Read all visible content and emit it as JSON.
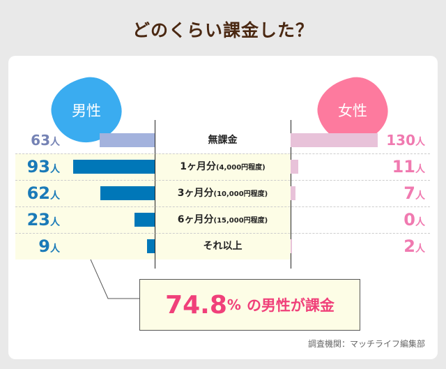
{
  "chart_data": {
    "type": "bar",
    "title": "どのくらい課金した？",
    "categories": [
      {
        "main": "無課金",
        "sub": ""
      },
      {
        "main": "1ヶ月分",
        "sub": "(4,000円程度)"
      },
      {
        "main": "3ヶ月分",
        "sub": "(10,000円程度)"
      },
      {
        "main": "6ヶ月分",
        "sub": "(15,000円程度)"
      },
      {
        "main": "それ以上",
        "sub": ""
      }
    ],
    "unit": "人",
    "series": [
      {
        "name": "男性",
        "values": [
          63,
          93,
          62,
          23,
          9
        ],
        "color": "#0077b8",
        "no_pay_color": "#a3b2dd",
        "label_color": "#1a7ab8",
        "no_pay_label_color": "#7482b4"
      },
      {
        "name": "女性",
        "values": [
          130,
          11,
          7,
          0,
          2
        ],
        "color": "#e8c2d9",
        "no_pay_color": "#e8c2d9",
        "label_color": "#f07ab0",
        "no_pay_label_color": "#f07ab0"
      }
    ],
    "callout": {
      "value": "74.8",
      "percent": "%",
      "text": "の男性が課金"
    },
    "source": "調査機関：マッチライフ編集部"
  }
}
